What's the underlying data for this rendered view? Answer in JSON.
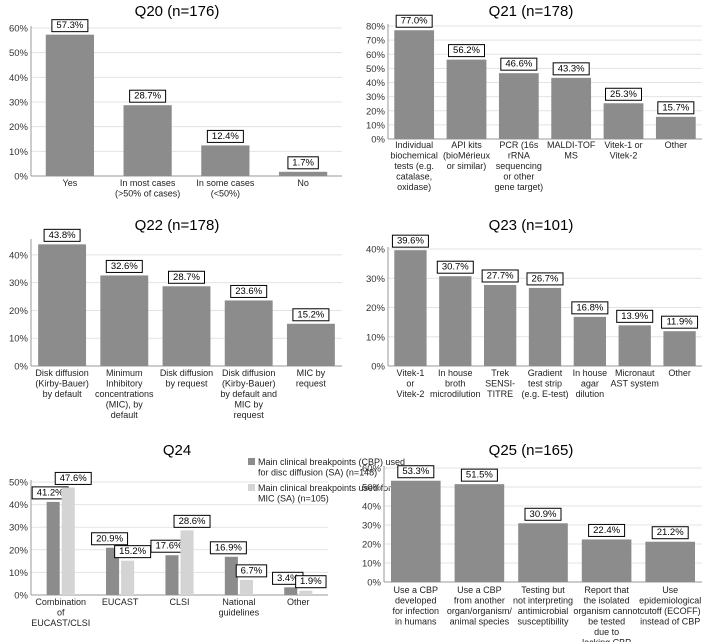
{
  "colors": {
    "bar": "#8c8c8c",
    "bar2": "#d4d4d4",
    "frame": "#000000"
  },
  "chart_data": [
    {
      "id": "q20",
      "type": "bar",
      "title": "Q20 (n=176)",
      "ylim": [
        0,
        60
      ],
      "yticks": [
        0,
        10,
        20,
        30,
        40,
        50,
        60
      ],
      "categories": [
        [
          "Yes"
        ],
        [
          "In most cases",
          "(>50% of cases)"
        ],
        [
          "In some cases",
          "(<50%)"
        ],
        [
          "No"
        ]
      ],
      "values": [
        57.3,
        28.7,
        12.4,
        1.7
      ],
      "labels": [
        "57.3%",
        "28.7%",
        "12.4%",
        "1.7%"
      ]
    },
    {
      "id": "q21",
      "type": "bar",
      "title": "Q21 (n=178)",
      "ylim": [
        0,
        80
      ],
      "yticks": [
        0,
        10,
        20,
        30,
        40,
        50,
        60,
        70,
        80
      ],
      "categories": [
        [
          "Individual",
          "biochemical",
          "tests (e.g.",
          "catalase,",
          "oxidase)"
        ],
        [
          "API kits",
          "(bioMérieux",
          "or similar)"
        ],
        [
          "PCR (16s",
          "rRNA",
          "sequencing",
          "or other",
          "gene target)"
        ],
        [
          "MALDI-TOF",
          "MS"
        ],
        [
          "Vitek-1 or",
          "Vitek-2"
        ],
        [
          "Other"
        ]
      ],
      "values": [
        77.0,
        56.2,
        46.6,
        43.3,
        25.3,
        15.7
      ],
      "labels": [
        "77.0%",
        "56.2%",
        "46.6%",
        "43.3%",
        "25.3%",
        "15.7%"
      ]
    },
    {
      "id": "q22",
      "type": "bar",
      "title": "Q22 (n=178)",
      "ylim": [
        0,
        45
      ],
      "yticks": [
        0,
        10,
        20,
        30,
        40
      ],
      "categories": [
        [
          "Disk diffusion",
          "(Kirby-Bauer)",
          "by default"
        ],
        [
          "Minimum",
          "Inhibitory",
          "concentrations",
          "(MIC), by",
          "default"
        ],
        [
          "Disk diffusion",
          "by request"
        ],
        [
          "Disk diffusion",
          "(Kirby-Bauer)",
          "by default and",
          "MIC by",
          "request"
        ],
        [
          "MIC by",
          "request"
        ]
      ],
      "values": [
        43.8,
        32.6,
        28.7,
        23.6,
        15.2
      ],
      "labels": [
        "43.8%",
        "32.6%",
        "28.7%",
        "23.6%",
        "15.2%"
      ]
    },
    {
      "id": "q23",
      "type": "bar",
      "title": "Q23 (n=101)",
      "ylim": [
        0,
        40
      ],
      "yticks": [
        0,
        10,
        20,
        30,
        40
      ],
      "categories": [
        [
          "Vitek-1",
          "or",
          "Vitek-2"
        ],
        [
          "In house",
          "broth",
          "microdilution"
        ],
        [
          "Trek",
          "SENSI-",
          "TITRE"
        ],
        [
          "Gradient",
          "test strip",
          "(e.g. E-test)"
        ],
        [
          "In house",
          "agar",
          "dilution"
        ],
        [
          "Micronaut",
          "AST system"
        ],
        [
          "Other"
        ]
      ],
      "values": [
        39.6,
        30.7,
        27.7,
        26.7,
        16.8,
        13.9,
        11.9
      ],
      "labels": [
        "39.6%",
        "30.7%",
        "27.7%",
        "26.7%",
        "16.8%",
        "13.9%",
        "11.9%"
      ]
    },
    {
      "id": "q24",
      "type": "bar",
      "title": "Q24",
      "ylim": [
        0,
        50
      ],
      "yticks": [
        0,
        10,
        20,
        30,
        40,
        50
      ],
      "categories": [
        [
          "Combination",
          "of",
          "EUCAST/CLSI"
        ],
        [
          "EUCAST"
        ],
        [
          "CLSI"
        ],
        [
          "National",
          "guidelines"
        ],
        [
          "Other"
        ]
      ],
      "series": [
        {
          "name": [
            "Main clinical breakpoints (CBP) used",
            "for disc diffusion (SA) (n=148)"
          ],
          "values": [
            41.2,
            20.9,
            17.6,
            16.9,
            3.4
          ],
          "labels": [
            "41.2%",
            "20.9%",
            "17.6%",
            "16.9%",
            "3.4%"
          ]
        },
        {
          "name": [
            "Main clinical breakpoints used for",
            "MIC (SA) (n=105)"
          ],
          "values": [
            47.6,
            15.2,
            28.6,
            6.7,
            1.9
          ],
          "labels": [
            "47.6%",
            "15.2%",
            "28.6%",
            "6.7%",
            "1.9%"
          ]
        }
      ]
    },
    {
      "id": "q25",
      "type": "bar",
      "title": "Q25 (n=165)",
      "ylim": [
        0,
        60
      ],
      "yticks": [
        0,
        10,
        20,
        30,
        40,
        50,
        60
      ],
      "categories": [
        [
          "Use a CBP",
          "developed",
          "for infection",
          "in humans"
        ],
        [
          "Use a CBP",
          "from another",
          "organ/organism/",
          "animal species"
        ],
        [
          "Testing but",
          "not interpreting",
          "antimicrobial",
          "susceptibility"
        ],
        [
          "Report that",
          "the isolated",
          "organism cannot",
          "be tested",
          "due to",
          "lacking CBP"
        ],
        [
          "Use",
          "epidemiological",
          "cutoff (ECOFF)",
          "instead of CBP"
        ]
      ],
      "values": [
        53.3,
        51.5,
        30.9,
        22.4,
        21.2
      ],
      "labels": [
        "53.3%",
        "51.5%",
        "30.9%",
        "22.4%",
        "21.2%"
      ]
    }
  ]
}
